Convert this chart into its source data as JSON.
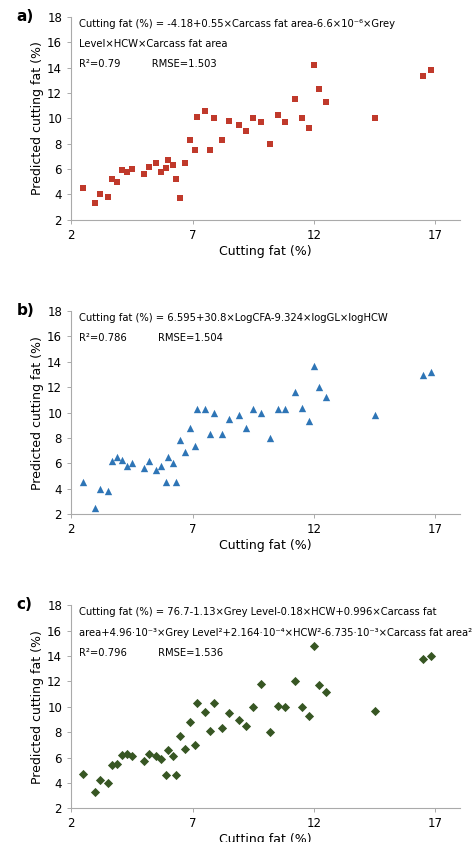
{
  "panel_a": {
    "label": "a)",
    "color": "#C0392B",
    "marker": "s",
    "markersize": 25,
    "x": [
      2.5,
      3.0,
      3.2,
      3.5,
      3.7,
      3.9,
      4.1,
      4.3,
      4.5,
      5.0,
      5.2,
      5.5,
      5.7,
      5.9,
      6.0,
      6.2,
      6.3,
      6.5,
      6.7,
      6.9,
      7.1,
      7.2,
      7.5,
      7.7,
      7.9,
      8.2,
      8.5,
      8.9,
      9.2,
      9.5,
      9.8,
      10.2,
      10.5,
      10.8,
      11.2,
      11.5,
      11.8,
      12.0,
      12.2,
      12.5,
      14.5,
      16.5,
      16.8
    ],
    "y": [
      4.5,
      3.3,
      4.0,
      3.8,
      5.2,
      5.0,
      5.9,
      5.8,
      6.0,
      5.6,
      6.2,
      6.5,
      5.8,
      6.1,
      6.7,
      6.3,
      5.2,
      3.7,
      6.5,
      8.3,
      7.5,
      10.1,
      10.6,
      7.5,
      10.0,
      8.3,
      9.8,
      9.5,
      9.0,
      10.0,
      9.7,
      8.0,
      10.3,
      9.7,
      11.5,
      10.0,
      9.2,
      14.2,
      12.3,
      11.3,
      10.0,
      13.3,
      13.8
    ],
    "ann": [
      "Cutting fat (%) = -4.18+0.55×Carcass fat area-6.6×10⁻⁶×Grey",
      "Level×HCW×Carcass fat area",
      "R²=0.79          RMSE=1.503"
    ]
  },
  "panel_b": {
    "label": "b)",
    "color": "#2E75B6",
    "marker": "^",
    "markersize": 28,
    "x": [
      2.5,
      3.0,
      3.2,
      3.5,
      3.7,
      3.9,
      4.1,
      4.3,
      4.5,
      5.0,
      5.2,
      5.5,
      5.7,
      5.9,
      6.0,
      6.2,
      6.3,
      6.5,
      6.7,
      6.9,
      7.1,
      7.2,
      7.5,
      7.7,
      7.9,
      8.2,
      8.5,
      8.9,
      9.2,
      9.5,
      9.8,
      10.2,
      10.5,
      10.8,
      11.2,
      11.5,
      11.8,
      12.0,
      12.2,
      12.5,
      14.5,
      16.5,
      16.8
    ],
    "y": [
      4.5,
      2.5,
      4.0,
      3.8,
      6.2,
      6.5,
      6.3,
      5.8,
      6.0,
      5.6,
      6.2,
      5.5,
      5.8,
      4.5,
      6.5,
      6.0,
      4.5,
      7.8,
      6.9,
      8.8,
      7.4,
      10.3,
      10.3,
      8.3,
      10.0,
      8.3,
      9.5,
      9.8,
      8.8,
      10.3,
      10.0,
      8.0,
      10.3,
      10.3,
      11.6,
      10.4,
      9.3,
      13.7,
      12.0,
      11.2,
      9.8,
      13.0,
      13.2
    ],
    "ann": [
      "Cutting fat (%) = 6.595+30.8×LogCFA-9.324×logGL×logHCW",
      "R²=0.786          RMSE=1.504"
    ]
  },
  "panel_c": {
    "label": "c)",
    "color": "#375623",
    "marker": "D",
    "markersize": 22,
    "x": [
      2.5,
      3.0,
      3.2,
      3.5,
      3.7,
      3.9,
      4.1,
      4.3,
      4.5,
      5.0,
      5.2,
      5.5,
      5.7,
      5.9,
      6.0,
      6.2,
      6.3,
      6.5,
      6.7,
      6.9,
      7.1,
      7.2,
      7.5,
      7.7,
      7.9,
      8.2,
      8.5,
      8.9,
      9.2,
      9.5,
      9.8,
      10.2,
      10.5,
      10.8,
      11.2,
      11.5,
      11.8,
      12.0,
      12.2,
      12.5,
      14.5,
      16.5,
      16.8
    ],
    "y": [
      4.7,
      3.3,
      4.2,
      4.0,
      5.4,
      5.5,
      6.2,
      6.3,
      6.1,
      5.7,
      6.3,
      6.1,
      5.9,
      4.6,
      6.6,
      6.1,
      4.6,
      7.7,
      6.7,
      8.8,
      7.0,
      10.3,
      9.6,
      8.1,
      10.3,
      8.3,
      9.5,
      9.0,
      8.5,
      10.0,
      11.8,
      8.0,
      10.1,
      10.0,
      12.0,
      10.0,
      9.3,
      14.8,
      11.7,
      11.2,
      9.7,
      13.8,
      14.0
    ],
    "ann": [
      "Cutting fat (%) = 76.7-1.13×Grey Level-0.18×HCW+0.996×Carcass fat",
      "area+4.96·10⁻³×Grey Level²+2.164·10⁻⁴×HCW²-6.735·10⁻³×Carcass fat area²",
      "R²=0.796          RMSE=1.536"
    ]
  },
  "xlim": [
    2,
    18
  ],
  "ylim": [
    2,
    18
  ],
  "xticks": [
    2,
    7,
    12,
    17
  ],
  "yticks": [
    2,
    4,
    6,
    8,
    10,
    12,
    14,
    16,
    18
  ],
  "xlabel": "Cutting fat (%)",
  "ylabel": "Predicted cutting fat (%)",
  "ann_fontsize": 7.2,
  "axis_label_fontsize": 9,
  "tick_fontsize": 8.5,
  "label_fontsize": 11
}
